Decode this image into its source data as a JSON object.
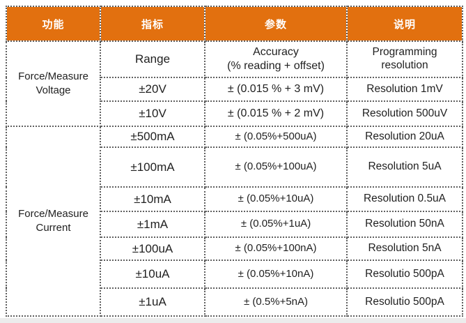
{
  "page": {
    "background": "#ffffff",
    "footer_strip_color": "#ececec"
  },
  "table": {
    "accent_color": "#E2700F",
    "border_color": "#5f5f5f",
    "header_text_color": "#ffffff",
    "body_text_color": "#1f1f1f",
    "headers": [
      {
        "label": "功能"
      },
      {
        "label": "指标"
      },
      {
        "label": "参数"
      },
      {
        "label": "说明"
      }
    ],
    "groups": [
      {
        "function": "Force/Measure Voltage",
        "rowspan": 3
      },
      {
        "function": "Force/Measure Current",
        "rowspan": 7
      }
    ],
    "rows": [
      {
        "indicator": "Range",
        "parameter": "Accuracy\n(% reading + offset)",
        "description": "Programming resolution"
      },
      {
        "indicator": "±20V",
        "parameter": "± (0.015 % + 3 mV)",
        "description": "Resolution 1mV"
      },
      {
        "indicator": "±10V",
        "parameter": "± (0.015 % + 2 mV)",
        "description": "Resolution 500uV"
      },
      {
        "indicator": "±500mA",
        "parameter": "± (0.05%+500uA)",
        "description": "Resolution 20uA"
      },
      {
        "indicator": "±100mA",
        "parameter": "± (0.05%+100uA)",
        "description": "Resolution 5uA"
      },
      {
        "indicator": "±10mA",
        "parameter": "± (0.05%+10uA)",
        "description": "Resolution 0.5uA"
      },
      {
        "indicator": "±1mA",
        "parameter": "± (0.05%+1uA)",
        "description": "Resolution 50nA"
      },
      {
        "indicator": "±100uA",
        "parameter": "± (0.05%+100nA)",
        "description": "Resolution 5nA"
      },
      {
        "indicator": "±10uA",
        "parameter": "± (0.05%+10nA)",
        "description": "Resolutio 500pA"
      },
      {
        "indicator": "±1uA",
        "parameter": "± (0.5%+5nA)",
        "description": "Resolutio 500pA"
      }
    ]
  }
}
